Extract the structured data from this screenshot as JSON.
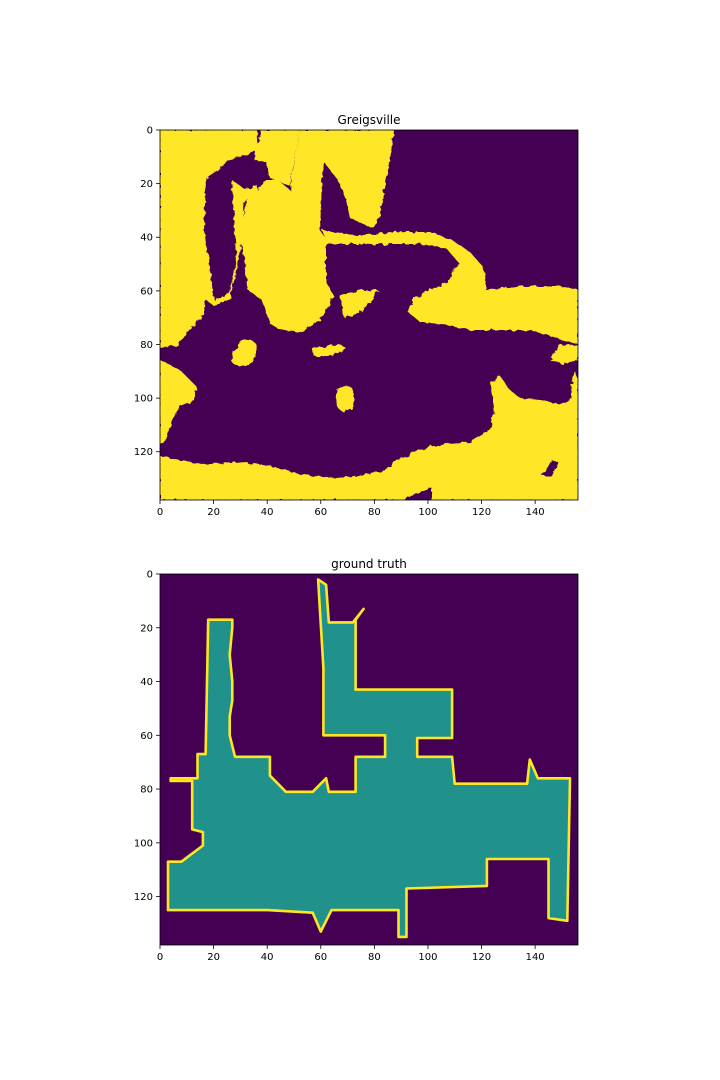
{
  "figure": {
    "background": "#ffffff"
  },
  "chart_data": [
    {
      "type": "heatmap",
      "title": "Greigsville",
      "colormap": "viridis",
      "xlim": [
        0,
        156
      ],
      "ylim": [
        138,
        0
      ],
      "xticks": [
        0,
        20,
        40,
        60,
        80,
        100,
        120,
        140
      ],
      "yticks": [
        0,
        20,
        40,
        60,
        80,
        100,
        120
      ],
      "xtick_labels": [
        "0",
        "20",
        "40",
        "60",
        "80",
        "100",
        "120",
        "140"
      ],
      "ytick_labels": [
        "0",
        "20",
        "40",
        "60",
        "80",
        "100",
        "120"
      ],
      "colors": {
        "background": "#440154",
        "foreground": "#fde725"
      }
    },
    {
      "type": "heatmap",
      "title": "ground truth",
      "colormap": "viridis",
      "xlim": [
        0,
        156
      ],
      "ylim": [
        138,
        0
      ],
      "xticks": [
        0,
        20,
        40,
        60,
        80,
        100,
        120,
        140
      ],
      "yticks": [
        0,
        20,
        40,
        60,
        80,
        100,
        120
      ],
      "xtick_labels": [
        "0",
        "20",
        "40",
        "60",
        "80",
        "100",
        "120",
        "140"
      ],
      "ytick_labels": [
        "0",
        "20",
        "40",
        "60",
        "80",
        "100",
        "120"
      ],
      "colors": {
        "background": "#440154",
        "region": "#21918c",
        "outline": "#fde725"
      },
      "region_outline": [
        [
          3,
          125
        ],
        [
          3,
          107
        ],
        [
          8,
          107
        ],
        [
          16,
          101
        ],
        [
          16,
          96
        ],
        [
          12,
          95
        ],
        [
          12,
          77
        ],
        [
          4,
          77
        ],
        [
          4,
          76
        ],
        [
          14,
          76
        ],
        [
          14,
          67
        ],
        [
          17,
          67
        ],
        [
          18,
          17
        ],
        [
          27,
          17
        ],
        [
          27,
          20
        ],
        [
          26,
          30
        ],
        [
          27,
          40
        ],
        [
          27,
          47
        ],
        [
          26,
          53
        ],
        [
          26,
          60
        ],
        [
          28,
          68
        ],
        [
          41,
          68
        ],
        [
          41,
          75
        ],
        [
          47,
          81
        ],
        [
          57,
          81
        ],
        [
          62,
          76
        ],
        [
          63,
          81
        ],
        [
          73,
          81
        ],
        [
          73,
          68
        ],
        [
          84,
          68
        ],
        [
          84,
          60
        ],
        [
          61,
          60
        ],
        [
          61,
          35
        ],
        [
          59,
          2
        ],
        [
          62,
          4
        ],
        [
          63,
          18
        ],
        [
          72,
          18
        ],
        [
          76,
          13
        ],
        [
          73,
          17
        ],
        [
          73,
          43
        ],
        [
          109,
          43
        ],
        [
          109,
          61
        ],
        [
          96,
          61
        ],
        [
          96,
          68
        ],
        [
          109,
          68
        ],
        [
          110,
          78
        ],
        [
          137,
          78
        ],
        [
          138,
          69
        ],
        [
          141,
          76
        ],
        [
          153,
          76
        ],
        [
          152,
          129
        ],
        [
          145,
          128
        ],
        [
          145,
          106
        ],
        [
          122,
          106
        ],
        [
          122,
          116
        ],
        [
          92,
          117
        ],
        [
          92,
          135
        ],
        [
          89,
          135
        ],
        [
          89,
          125
        ],
        [
          64,
          125
        ],
        [
          60,
          133
        ],
        [
          57,
          126
        ],
        [
          40,
          125
        ]
      ]
    }
  ]
}
